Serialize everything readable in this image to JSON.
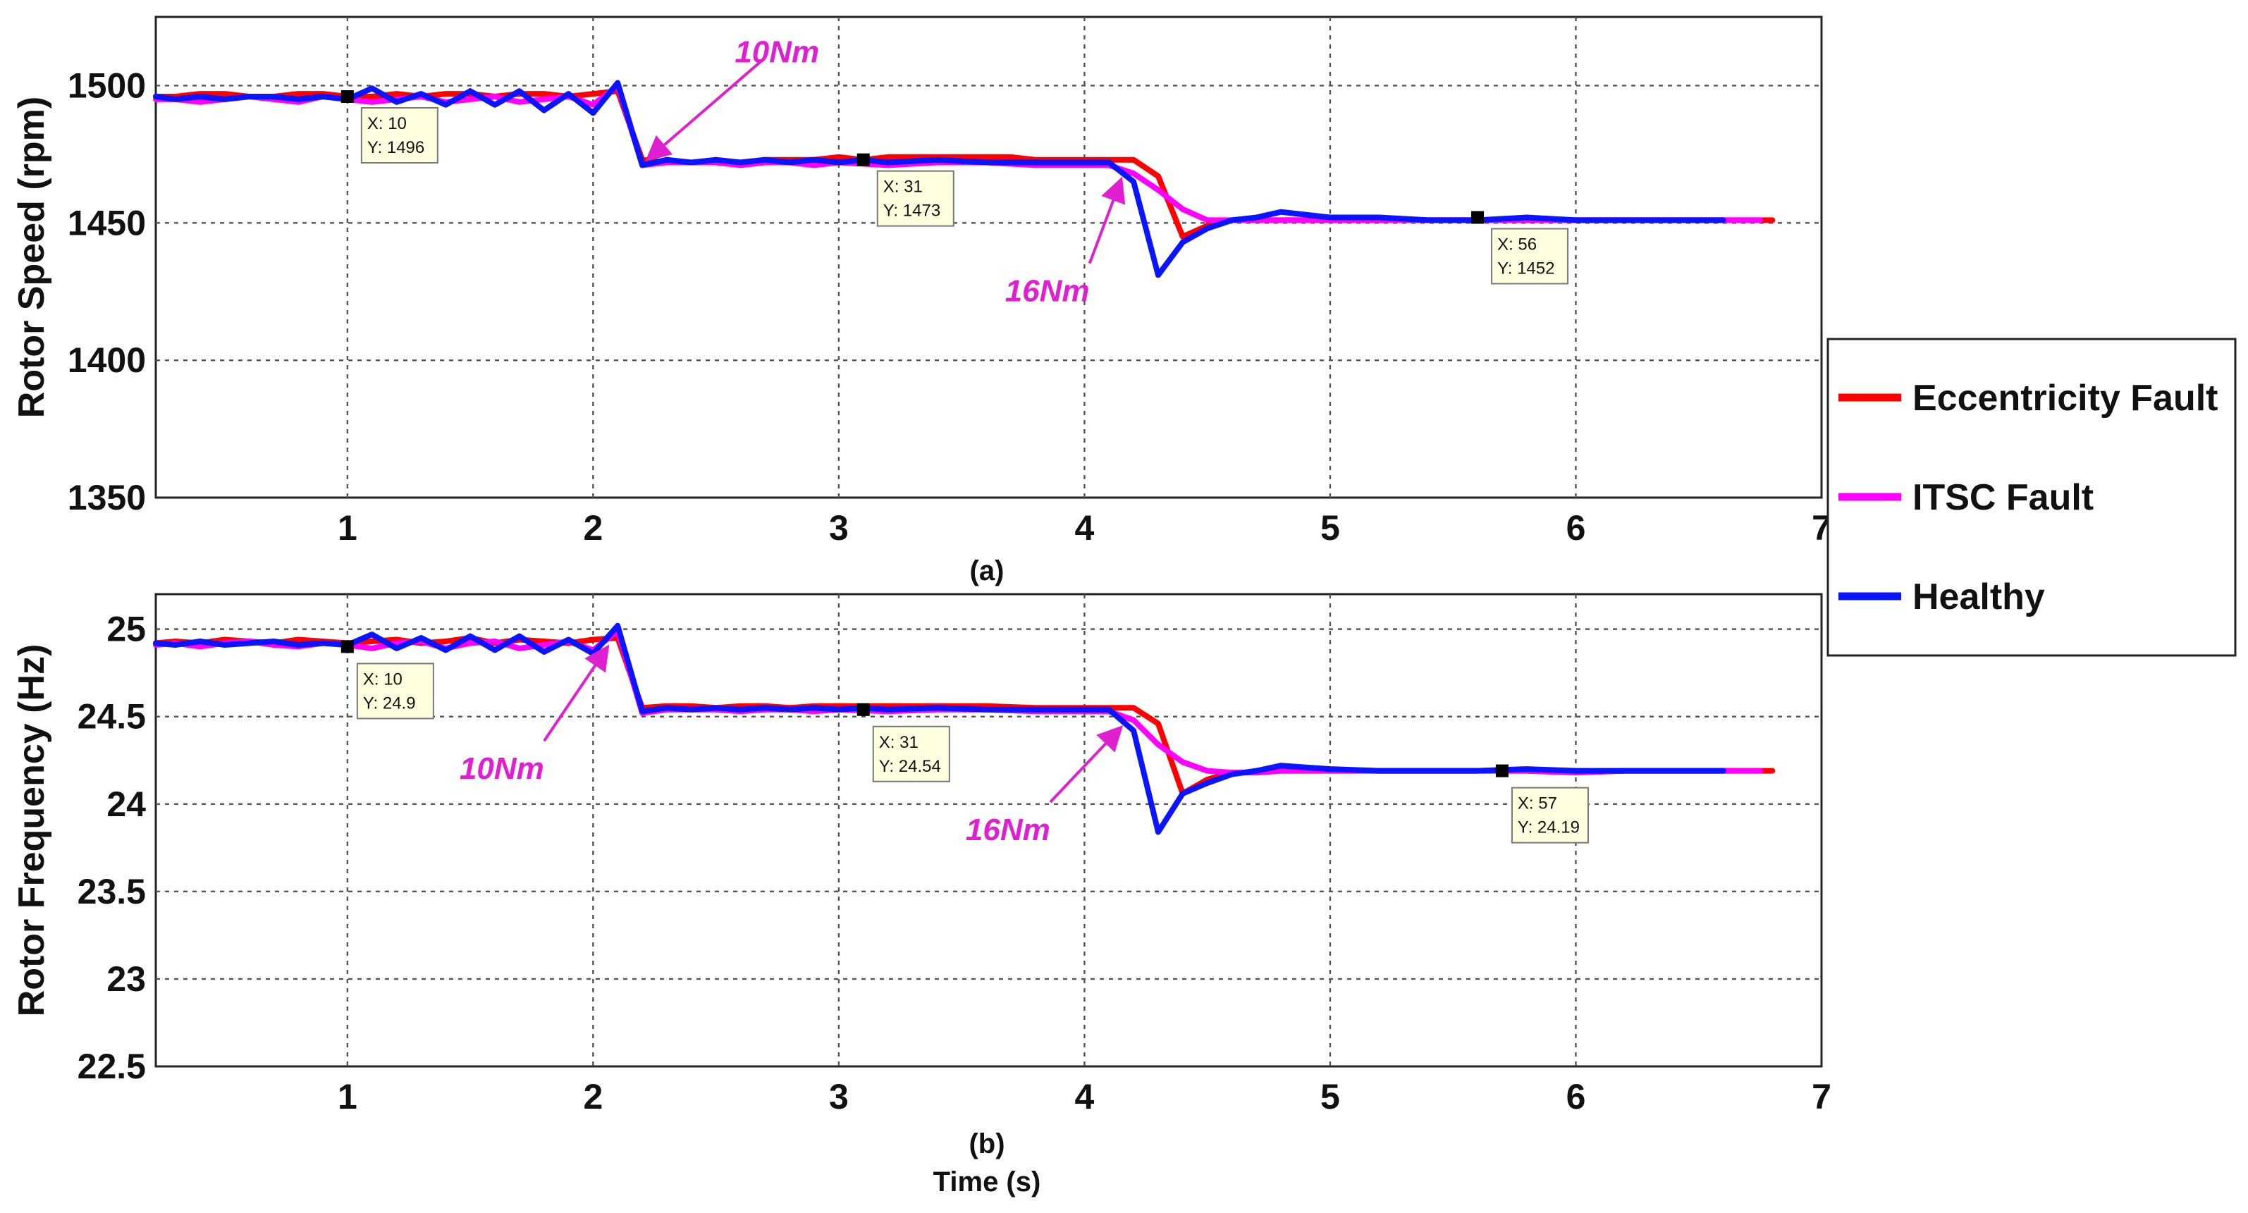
{
  "legend": [
    {
      "name": "Eccentricity Fault",
      "color": "#ff0000"
    },
    {
      "name": "ITSC Fault",
      "color": "#ff00ff"
    },
    {
      "name": "Healthy",
      "color": "#0a14ff"
    }
  ],
  "chart_data": [
    {
      "type": "line",
      "id": "a",
      "caption": "(a)",
      "xlabel": "",
      "ylabel": "Rotor Speed (rpm)",
      "xlim": [
        0.22,
        7
      ],
      "ylim": [
        1350,
        1525
      ],
      "xticks": [
        1,
        2,
        3,
        4,
        5,
        6,
        7
      ],
      "yticks": [
        1350,
        1400,
        1450,
        1500
      ],
      "grid": true,
      "series": [
        {
          "name": "Eccentricity Fault",
          "x": [
            0.22,
            0.3,
            0.4,
            0.5,
            0.6,
            0.7,
            0.8,
            0.9,
            1.0,
            1.1,
            1.2,
            1.3,
            1.4,
            1.5,
            1.6,
            1.7,
            1.8,
            1.9,
            2.0,
            2.1,
            2.2,
            2.3,
            2.4,
            2.5,
            2.6,
            2.7,
            2.8,
            2.9,
            3.0,
            3.1,
            3.2,
            3.3,
            3.4,
            3.5,
            3.6,
            3.7,
            3.8,
            3.9,
            4.0,
            4.1,
            4.2,
            4.3,
            4.4,
            4.5,
            4.6,
            4.7,
            4.8,
            4.9,
            5.0,
            5.2,
            5.4,
            5.6,
            5.8,
            6.0,
            6.2,
            6.4,
            6.6,
            6.8
          ],
          "y": [
            1496,
            1496,
            1497,
            1497,
            1496,
            1496,
            1497,
            1497,
            1496,
            1496,
            1497,
            1496,
            1497,
            1497,
            1496,
            1497,
            1497,
            1496,
            1497,
            1498,
            1473,
            1472,
            1472,
            1472,
            1472,
            1473,
            1473,
            1473,
            1474,
            1473,
            1474,
            1474,
            1474,
            1474,
            1474,
            1474,
            1473,
            1473,
            1473,
            1473,
            1473,
            1467,
            1445,
            1449,
            1451,
            1451,
            1451,
            1451,
            1451,
            1451,
            1451,
            1451,
            1451,
            1451,
            1451,
            1451,
            1451,
            1451
          ]
        },
        {
          "name": "ITSC Fault",
          "x": [
            0.22,
            0.3,
            0.4,
            0.5,
            0.6,
            0.7,
            0.8,
            0.9,
            1.0,
            1.1,
            1.2,
            1.3,
            1.4,
            1.5,
            1.6,
            1.7,
            1.8,
            1.9,
            2.0,
            2.1,
            2.2,
            2.3,
            2.4,
            2.5,
            2.6,
            2.7,
            2.8,
            2.9,
            3.0,
            3.2,
            3.4,
            3.6,
            3.8,
            4.0,
            4.1,
            4.2,
            4.3,
            4.4,
            4.5,
            4.6,
            4.7,
            4.8,
            4.9,
            5.0,
            5.2,
            5.4,
            5.6,
            5.8,
            6.0,
            6.2,
            6.4,
            6.6,
            6.75
          ],
          "y": [
            1495,
            1495,
            1494,
            1495,
            1496,
            1495,
            1494,
            1496,
            1495,
            1494,
            1495,
            1496,
            1494,
            1495,
            1496,
            1494,
            1495,
            1496,
            1493,
            1500,
            1471,
            1472,
            1472,
            1472,
            1471,
            1472,
            1472,
            1471,
            1472,
            1471,
            1472,
            1472,
            1471,
            1471,
            1471,
            1468,
            1462,
            1455,
            1451,
            1451,
            1451,
            1451,
            1451,
            1451,
            1451,
            1451,
            1451,
            1451,
            1451,
            1451,
            1451,
            1451,
            1451
          ]
        },
        {
          "name": "Healthy",
          "x": [
            0.22,
            0.3,
            0.4,
            0.5,
            0.6,
            0.7,
            0.8,
            0.9,
            1.0,
            1.1,
            1.2,
            1.3,
            1.4,
            1.5,
            1.6,
            1.7,
            1.8,
            1.9,
            2.0,
            2.1,
            2.2,
            2.3,
            2.4,
            2.5,
            2.6,
            2.7,
            2.8,
            2.9,
            3.0,
            3.1,
            3.2,
            3.4,
            3.6,
            3.8,
            4.0,
            4.1,
            4.2,
            4.3,
            4.4,
            4.5,
            4.6,
            4.7,
            4.8,
            4.9,
            5.0,
            5.2,
            5.4,
            5.6,
            5.8,
            6.0,
            6.2,
            6.4,
            6.6
          ],
          "y": [
            1496,
            1495,
            1496,
            1495,
            1496,
            1496,
            1495,
            1496,
            1495,
            1499,
            1494,
            1497,
            1493,
            1498,
            1493,
            1498,
            1491,
            1497,
            1490,
            1501,
            1471,
            1473,
            1472,
            1473,
            1472,
            1473,
            1472,
            1473,
            1472,
            1473,
            1472,
            1473,
            1472,
            1472,
            1472,
            1472,
            1465,
            1431,
            1443,
            1448,
            1451,
            1452,
            1454,
            1453,
            1452,
            1452,
            1451,
            1451,
            1452,
            1451,
            1451,
            1451,
            1451
          ]
        }
      ],
      "annotations": [
        {
          "text": "10Nm",
          "x": 2.72,
          "y": 1512,
          "arrow_to": [
            2.22,
            1473
          ]
        },
        {
          "text": "16Nm",
          "x": 3.82,
          "y": 1425,
          "arrow_to": [
            4.15,
            1466
          ]
        }
      ],
      "datatips": [
        {
          "x": 1.0,
          "y": 1496,
          "line1": "X: 10",
          "line2": "Y: 1496"
        },
        {
          "x": 3.1,
          "y": 1473,
          "line1": "X: 31",
          "line2": "Y: 1473"
        },
        {
          "x": 5.6,
          "y": 1452,
          "line1": "X: 56",
          "line2": "Y: 1452"
        }
      ]
    },
    {
      "type": "line",
      "id": "b",
      "caption": "(b)",
      "xlabel": "Time (s)",
      "ylabel": "Rotor Frequency (Hz)",
      "xlim": [
        0.22,
        7
      ],
      "ylim": [
        22.5,
        25.2
      ],
      "xticks": [
        1,
        2,
        3,
        4,
        5,
        6,
        7
      ],
      "yticks": [
        22.5,
        23,
        23.5,
        24,
        24.5,
        25
      ],
      "grid": true,
      "series": [
        {
          "name": "Eccentricity Fault",
          "x": [
            0.22,
            0.3,
            0.4,
            0.5,
            0.6,
            0.7,
            0.8,
            0.9,
            1.0,
            1.1,
            1.2,
            1.3,
            1.4,
            1.5,
            1.6,
            1.7,
            1.8,
            1.9,
            2.0,
            2.1,
            2.2,
            2.3,
            2.4,
            2.5,
            2.6,
            2.7,
            2.8,
            2.9,
            3.0,
            3.2,
            3.4,
            3.6,
            3.8,
            4.0,
            4.1,
            4.2,
            4.3,
            4.4,
            4.5,
            4.6,
            4.7,
            4.8,
            4.9,
            5.0,
            5.2,
            5.4,
            5.6,
            5.8,
            6.0,
            6.2,
            6.4,
            6.6,
            6.8
          ],
          "y": [
            24.92,
            24.93,
            24.92,
            24.94,
            24.93,
            24.92,
            24.94,
            24.93,
            24.92,
            24.93,
            24.94,
            24.92,
            24.93,
            24.95,
            24.92,
            24.94,
            24.93,
            24.92,
            24.94,
            24.95,
            24.55,
            24.56,
            24.56,
            24.55,
            24.56,
            24.56,
            24.55,
            24.56,
            24.56,
            24.56,
            24.56,
            24.56,
            24.55,
            24.55,
            24.55,
            24.55,
            24.46,
            24.06,
            24.14,
            24.18,
            24.18,
            24.19,
            24.19,
            24.19,
            24.19,
            24.19,
            24.19,
            24.19,
            24.18,
            24.19,
            24.19,
            24.19,
            24.19
          ]
        },
        {
          "name": "ITSC Fault",
          "x": [
            0.22,
            0.3,
            0.4,
            0.5,
            0.6,
            0.7,
            0.8,
            0.9,
            1.0,
            1.1,
            1.2,
            1.3,
            1.4,
            1.5,
            1.6,
            1.7,
            1.8,
            1.9,
            2.0,
            2.1,
            2.2,
            2.3,
            2.4,
            2.5,
            2.6,
            2.7,
            2.8,
            2.9,
            3.0,
            3.2,
            3.4,
            3.6,
            3.8,
            4.0,
            4.1,
            4.2,
            4.3,
            4.4,
            4.5,
            4.6,
            4.7,
            4.8,
            4.9,
            5.0,
            5.2,
            5.4,
            5.6,
            5.8,
            6.0,
            6.2,
            6.4,
            6.6,
            6.75
          ],
          "y": [
            24.91,
            24.92,
            24.9,
            24.92,
            24.93,
            24.91,
            24.9,
            24.92,
            24.91,
            24.89,
            24.92,
            24.93,
            24.89,
            24.92,
            24.93,
            24.89,
            24.91,
            24.93,
            24.88,
            24.99,
            24.52,
            24.54,
            24.54,
            24.54,
            24.53,
            24.54,
            24.54,
            24.53,
            24.54,
            24.53,
            24.54,
            24.54,
            24.53,
            24.53,
            24.53,
            24.48,
            24.34,
            24.24,
            24.19,
            24.18,
            24.18,
            24.19,
            24.19,
            24.19,
            24.19,
            24.19,
            24.19,
            24.19,
            24.18,
            24.19,
            24.19,
            24.19,
            24.19
          ]
        },
        {
          "name": "Healthy",
          "x": [
            0.22,
            0.3,
            0.4,
            0.5,
            0.6,
            0.7,
            0.8,
            0.9,
            1.0,
            1.1,
            1.2,
            1.3,
            1.4,
            1.5,
            1.6,
            1.7,
            1.8,
            1.9,
            2.0,
            2.1,
            2.2,
            2.3,
            2.4,
            2.5,
            2.6,
            2.7,
            2.8,
            2.9,
            3.0,
            3.1,
            3.2,
            3.4,
            3.6,
            3.8,
            4.0,
            4.1,
            4.2,
            4.3,
            4.4,
            4.5,
            4.6,
            4.7,
            4.8,
            4.9,
            5.0,
            5.2,
            5.4,
            5.6,
            5.8,
            6.0,
            6.2,
            6.4,
            6.6
          ],
          "y": [
            24.92,
            24.91,
            24.93,
            24.91,
            24.92,
            24.93,
            24.91,
            24.92,
            24.91,
            24.97,
            24.89,
            24.95,
            24.88,
            24.96,
            24.88,
            24.96,
            24.87,
            24.94,
            24.86,
            25.02,
            24.53,
            24.55,
            24.54,
            24.55,
            24.54,
            24.55,
            24.54,
            24.55,
            24.54,
            24.55,
            24.54,
            24.55,
            24.54,
            24.54,
            24.54,
            24.54,
            24.42,
            23.84,
            24.06,
            24.12,
            24.17,
            24.19,
            24.22,
            24.21,
            24.2,
            24.19,
            24.19,
            24.19,
            24.2,
            24.19,
            24.19,
            24.19,
            24.19
          ]
        }
      ],
      "annotations": [
        {
          "text": "10Nm",
          "x": 1.6,
          "y": 24.2,
          "arrow_to": [
            2.06,
            24.9
          ]
        },
        {
          "text": "16Nm",
          "x": 3.66,
          "y": 23.85,
          "arrow_to": [
            4.15,
            24.44
          ]
        }
      ],
      "datatips": [
        {
          "x": 1.0,
          "y": 24.9,
          "line1": "X: 10",
          "line2": "Y: 24.9"
        },
        {
          "x": 3.1,
          "y": 24.54,
          "line1": "X: 31",
          "line2": "Y: 24.54"
        },
        {
          "x": 5.7,
          "y": 24.19,
          "line1": "X: 57",
          "line2": "Y: 24.19"
        }
      ]
    }
  ]
}
